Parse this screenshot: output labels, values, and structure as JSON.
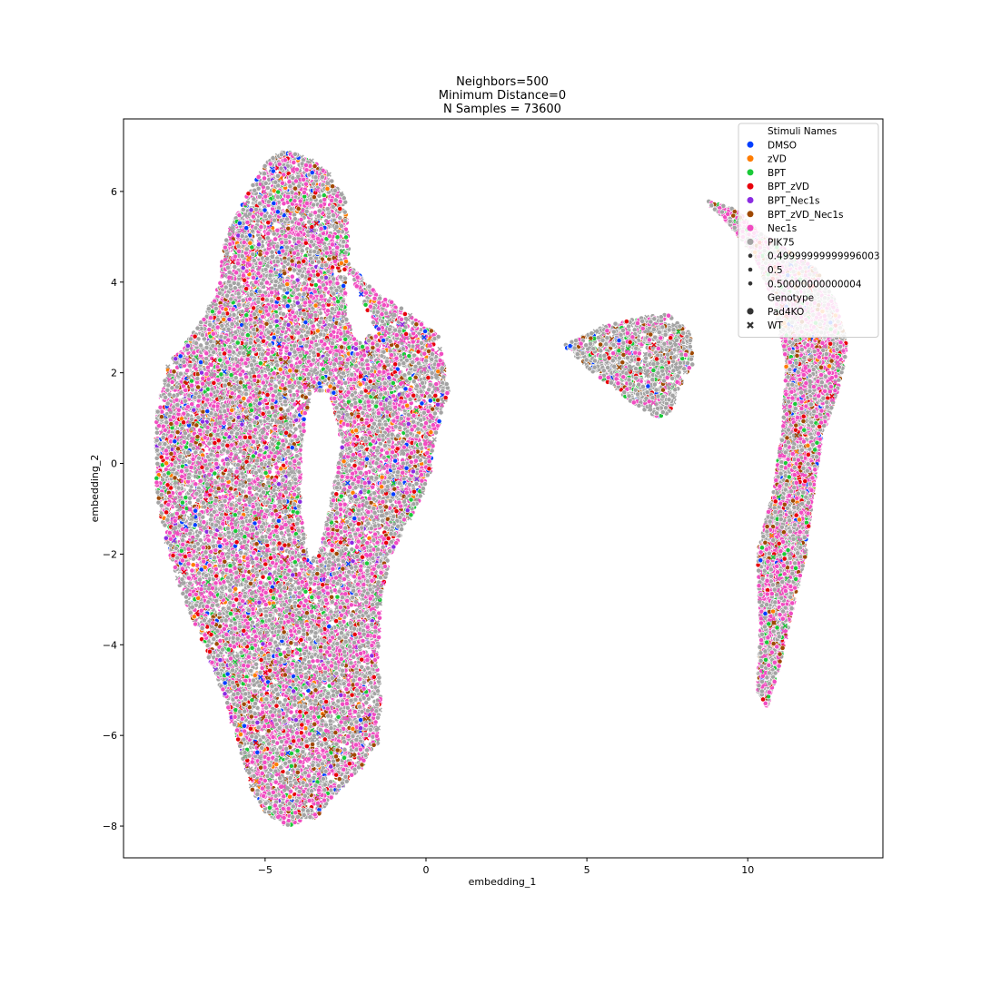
{
  "chart_data": {
    "type": "scatter",
    "title_lines": [
      "Neighbors=500",
      "Minimum Distance=0",
      "N Samples = 73600"
    ],
    "xlabel": "embedding_1",
    "ylabel": "embedding_2",
    "xlim": [
      -9.4,
      14.2
    ],
    "ylim": [
      -8.7,
      7.6
    ],
    "xticks": [
      -5,
      0,
      5,
      10
    ],
    "yticks": [
      -8,
      -6,
      -4,
      -2,
      0,
      2,
      4,
      6
    ],
    "xtick_labels": [
      "−5",
      "0",
      "5",
      "10"
    ],
    "ytick_labels": [
      "−8",
      "−6",
      "−4",
      "−2",
      "0",
      "2",
      "4",
      "6"
    ],
    "grid": false,
    "legend_placement": "top-right",
    "legend": {
      "hue_title": "Stimuli Names",
      "hue": [
        {
          "name": "DMSO",
          "color": "#023eff"
        },
        {
          "name": "zVD",
          "color": "#ff7c00"
        },
        {
          "name": "BPT",
          "color": "#1ac938"
        },
        {
          "name": "BPT_zVD",
          "color": "#e8000b"
        },
        {
          "name": "BPT_Nec1s",
          "color": "#8b2be2"
        },
        {
          "name": "BPT_zVD_Nec1s",
          "color": "#9f4800"
        },
        {
          "name": "Nec1s",
          "color": "#f14cc1"
        },
        {
          "name": "PIK75",
          "color": "#a3a3a3"
        }
      ],
      "sizes": [
        "0.49999999999996003",
        "0.5",
        "0.50000000000004"
      ],
      "style_title": "Genotype",
      "styles": [
        {
          "name": "Pad4KO",
          "marker": "circle"
        },
        {
          "name": "WT",
          "marker": "x"
        }
      ]
    },
    "clusters": [
      {
        "name": "left large cluster",
        "outline": [
          [
            -4.5,
            6.9
          ],
          [
            -3.8,
            6.8
          ],
          [
            -3,
            6.4
          ],
          [
            -2.5,
            5.8
          ],
          [
            -2.4,
            4.9
          ],
          [
            -2.4,
            4.4
          ],
          [
            -1.6,
            3.8
          ],
          [
            -0.5,
            3.3
          ],
          [
            0.4,
            2.8
          ],
          [
            0.7,
            1.6
          ],
          [
            0.3,
            0.6
          ],
          [
            0.1,
            -0.4
          ],
          [
            -0.5,
            -1.2
          ],
          [
            -1.1,
            -2
          ],
          [
            -1.4,
            -3
          ],
          [
            -1.5,
            -4.3
          ],
          [
            -1.4,
            -5.2
          ],
          [
            -1.5,
            -6.2
          ],
          [
            -2,
            -6.7
          ],
          [
            -2.7,
            -7.2
          ],
          [
            -3.4,
            -7.8
          ],
          [
            -4.3,
            -8
          ],
          [
            -5,
            -7.7
          ],
          [
            -5.4,
            -7.2
          ],
          [
            -5.7,
            -6.5
          ],
          [
            -6.2,
            -5.3
          ],
          [
            -6.9,
            -4
          ],
          [
            -7.4,
            -3.2
          ],
          [
            -8,
            -2
          ],
          [
            -8.4,
            -0.6
          ],
          [
            -8.4,
            1
          ],
          [
            -8,
            2.2
          ],
          [
            -7.1,
            3
          ],
          [
            -6.5,
            3.8
          ],
          [
            -6.2,
            5
          ],
          [
            -5.5,
            6
          ],
          [
            -5,
            6.6
          ]
        ],
        "density": [
          {
            "category": "Nec1s",
            "fraction": 0.3
          },
          {
            "category": "PIK75",
            "fraction": 0.5
          },
          {
            "category": "BPT_zVD",
            "fraction": 0.05
          },
          {
            "category": "BPT_zVD_Nec1s",
            "fraction": 0.05
          },
          {
            "category": "BPT",
            "fraction": 0.04
          },
          {
            "category": "DMSO",
            "fraction": 0.02
          },
          {
            "category": "zVD",
            "fraction": 0.02
          },
          {
            "category": "BPT_Nec1s",
            "fraction": 0.02
          }
        ]
      },
      {
        "name": "middle triangle cluster",
        "outline": [
          [
            4.3,
            2.6
          ],
          [
            5.4,
            3
          ],
          [
            6.5,
            3.2
          ],
          [
            7.5,
            3.3
          ],
          [
            8.2,
            2.9
          ],
          [
            8.3,
            2.2
          ],
          [
            7.8,
            1.6
          ],
          [
            7.6,
            1.1
          ],
          [
            7.2,
            1
          ],
          [
            6.3,
            1.4
          ],
          [
            5.2,
            2
          ]
        ],
        "density": [
          {
            "category": "PIK75",
            "fraction": 0.7
          },
          {
            "category": "Nec1s",
            "fraction": 0.12
          },
          {
            "category": "BPT_zVD_Nec1s",
            "fraction": 0.06
          },
          {
            "category": "BPT",
            "fraction": 0.05
          },
          {
            "category": "BPT_zVD",
            "fraction": 0.04
          },
          {
            "category": "DMSO",
            "fraction": 0.03
          }
        ]
      },
      {
        "name": "right elongated cluster",
        "outline": [
          [
            8.7,
            5.8
          ],
          [
            9.6,
            5.6
          ],
          [
            10.4,
            5.1
          ],
          [
            11.2,
            4.7
          ],
          [
            12.1,
            4.3
          ],
          [
            12.7,
            3.6
          ],
          [
            13.1,
            2.6
          ],
          [
            12.8,
            1.6
          ],
          [
            12.3,
            0.6
          ],
          [
            12,
            -0.8
          ],
          [
            11.8,
            -2
          ],
          [
            11.4,
            -3.2
          ],
          [
            11,
            -4.4
          ],
          [
            10.6,
            -5.4
          ],
          [
            10.3,
            -5
          ],
          [
            10.4,
            -3.6
          ],
          [
            10.3,
            -2
          ],
          [
            10.8,
            -0.6
          ],
          [
            11.1,
            0.8
          ],
          [
            11.2,
            2.2
          ],
          [
            10.8,
            3.6
          ],
          [
            10.2,
            4.6
          ],
          [
            9.4,
            5.3
          ]
        ],
        "density": [
          {
            "category": "Nec1s",
            "fraction": 0.35
          },
          {
            "category": "PIK75",
            "fraction": 0.45
          },
          {
            "category": "BPT_zVD_Nec1s",
            "fraction": 0.07
          },
          {
            "category": "BPT",
            "fraction": 0.05
          },
          {
            "category": "BPT_zVD",
            "fraction": 0.04
          },
          {
            "category": "zVD",
            "fraction": 0.02
          },
          {
            "category": "DMSO",
            "fraction": 0.02
          }
        ]
      }
    ],
    "gaps": [
      {
        "outline": [
          [
            -3.6,
            1.6
          ],
          [
            -3,
            1.6
          ],
          [
            -2.6,
            0.4
          ],
          [
            -3,
            -1
          ],
          [
            -3.3,
            -2
          ],
          [
            -3.7,
            -2
          ],
          [
            -3.9,
            -1
          ],
          [
            -3.9,
            0.2
          ]
        ]
      },
      {
        "outline": [
          [
            -2.5,
            4.4
          ],
          [
            -1.9,
            3.5
          ],
          [
            -1.5,
            2.9
          ],
          [
            -2.2,
            2.7
          ],
          [
            -2.5,
            3.3
          ]
        ]
      }
    ]
  }
}
